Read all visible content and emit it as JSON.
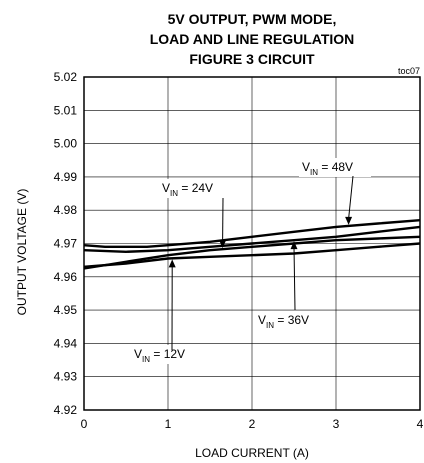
{
  "chart_data": {
    "type": "line",
    "title": [
      "5V OUTPUT, PWM MODE,",
      "LOAD AND LINE REGULATION",
      "FIGURE 3 CIRCUIT"
    ],
    "corner_note": "toc07",
    "xlabel": "LOAD CURRENT  (A)",
    "ylabel": "OUTPUT  VOLTAGE  (V)",
    "xlim": [
      0,
      4
    ],
    "ylim": [
      4.92,
      5.02
    ],
    "xticks": [
      "0",
      "1",
      "2",
      "3",
      "4"
    ],
    "yticks": [
      "4.92",
      "4.93",
      "4.94",
      "4.95",
      "4.96",
      "4.97",
      "4.98",
      "4.99",
      "5.00",
      "5.01",
      "5.02"
    ],
    "grid": true,
    "series": [
      {
        "label_prefix": "V",
        "label_sub": "IN",
        "label_suffix": " = 12V",
        "x": [
          0,
          0.5,
          1,
          1.5,
          2,
          2.5,
          3,
          3.5,
          4
        ],
        "y": [
          4.963,
          4.964,
          4.9655,
          4.966,
          4.9665,
          4.967,
          4.968,
          4.969,
          4.97
        ]
      },
      {
        "label_prefix": "V",
        "label_sub": "IN",
        "label_suffix": " = 24V",
        "x": [
          0,
          0.5,
          1,
          1.5,
          2,
          2.5,
          3,
          3.5,
          4
        ],
        "y": [
          4.9625,
          4.9645,
          4.9665,
          4.968,
          4.969,
          4.97,
          4.971,
          4.9715,
          4.972
        ]
      },
      {
        "label_prefix": "V",
        "label_sub": "IN",
        "label_suffix": " = 36V",
        "x": [
          0,
          0.5,
          1,
          1.5,
          2,
          2.5,
          3,
          3.5,
          4
        ],
        "y": [
          4.968,
          4.9675,
          4.968,
          4.969,
          4.97,
          4.971,
          4.972,
          4.9735,
          4.975
        ]
      },
      {
        "label_prefix": "V",
        "label_sub": "IN",
        "label_suffix": " = 48V",
        "x": [
          0,
          0.25,
          0.5,
          0.75,
          1,
          1.5,
          2,
          2.5,
          3,
          3.5,
          4
        ],
        "y": [
          4.9695,
          4.969,
          4.969,
          4.969,
          4.9695,
          4.9705,
          4.972,
          4.9735,
          4.975,
          4.976,
          4.977
        ]
      }
    ]
  }
}
